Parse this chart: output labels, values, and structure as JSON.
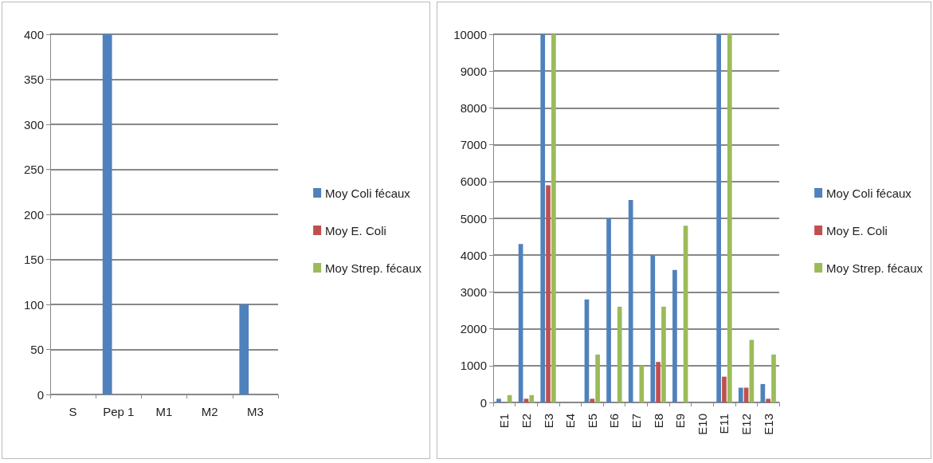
{
  "chart_data": [
    {
      "type": "bar",
      "categories": [
        "S",
        "Pep 1",
        "M1",
        "M2",
        "M3"
      ],
      "ylim": [
        0,
        400
      ],
      "yticks": [
        0,
        50,
        100,
        150,
        200,
        250,
        300,
        350,
        400
      ],
      "grid": "y",
      "legend": "right",
      "series": [
        {
          "name": "Moy Coli fécaux",
          "color": "#4f81bd",
          "values": [
            0,
            400,
            0,
            0,
            100
          ]
        },
        {
          "name": "Moy E. Coli",
          "color": "#c0504d",
          "values": [
            0,
            0,
            0,
            0,
            0
          ]
        },
        {
          "name": "Moy Strep. fécaux",
          "color": "#9bbb59",
          "values": [
            0,
            0,
            0,
            0,
            0
          ]
        }
      ]
    },
    {
      "type": "bar",
      "categories": [
        "E1",
        "E2",
        "E3",
        "E4",
        "E5",
        "E6",
        "E7",
        "E8",
        "E9",
        "E10",
        "E11",
        "E12",
        "E13"
      ],
      "ylim": [
        0,
        10000
      ],
      "yticks": [
        0,
        1000,
        2000,
        3000,
        4000,
        5000,
        6000,
        7000,
        8000,
        9000,
        10000
      ],
      "grid": "y",
      "legend": "right",
      "series": [
        {
          "name": "Moy Coli fécaux",
          "color": "#4f81bd",
          "values": [
            100,
            4300,
            10000,
            0,
            2800,
            5000,
            5500,
            4000,
            3600,
            0,
            10000,
            400,
            500
          ]
        },
        {
          "name": "Moy E. Coli",
          "color": "#c0504d",
          "values": [
            0,
            100,
            5900,
            0,
            100,
            0,
            0,
            1100,
            0,
            0,
            700,
            400,
            100
          ]
        },
        {
          "name": "Moy Strep. fécaux",
          "color": "#9bbb59",
          "values": [
            200,
            200,
            10000,
            0,
            1300,
            2600,
            1000,
            2600,
            4800,
            0,
            10000,
            1700,
            1300
          ]
        }
      ]
    }
  ]
}
